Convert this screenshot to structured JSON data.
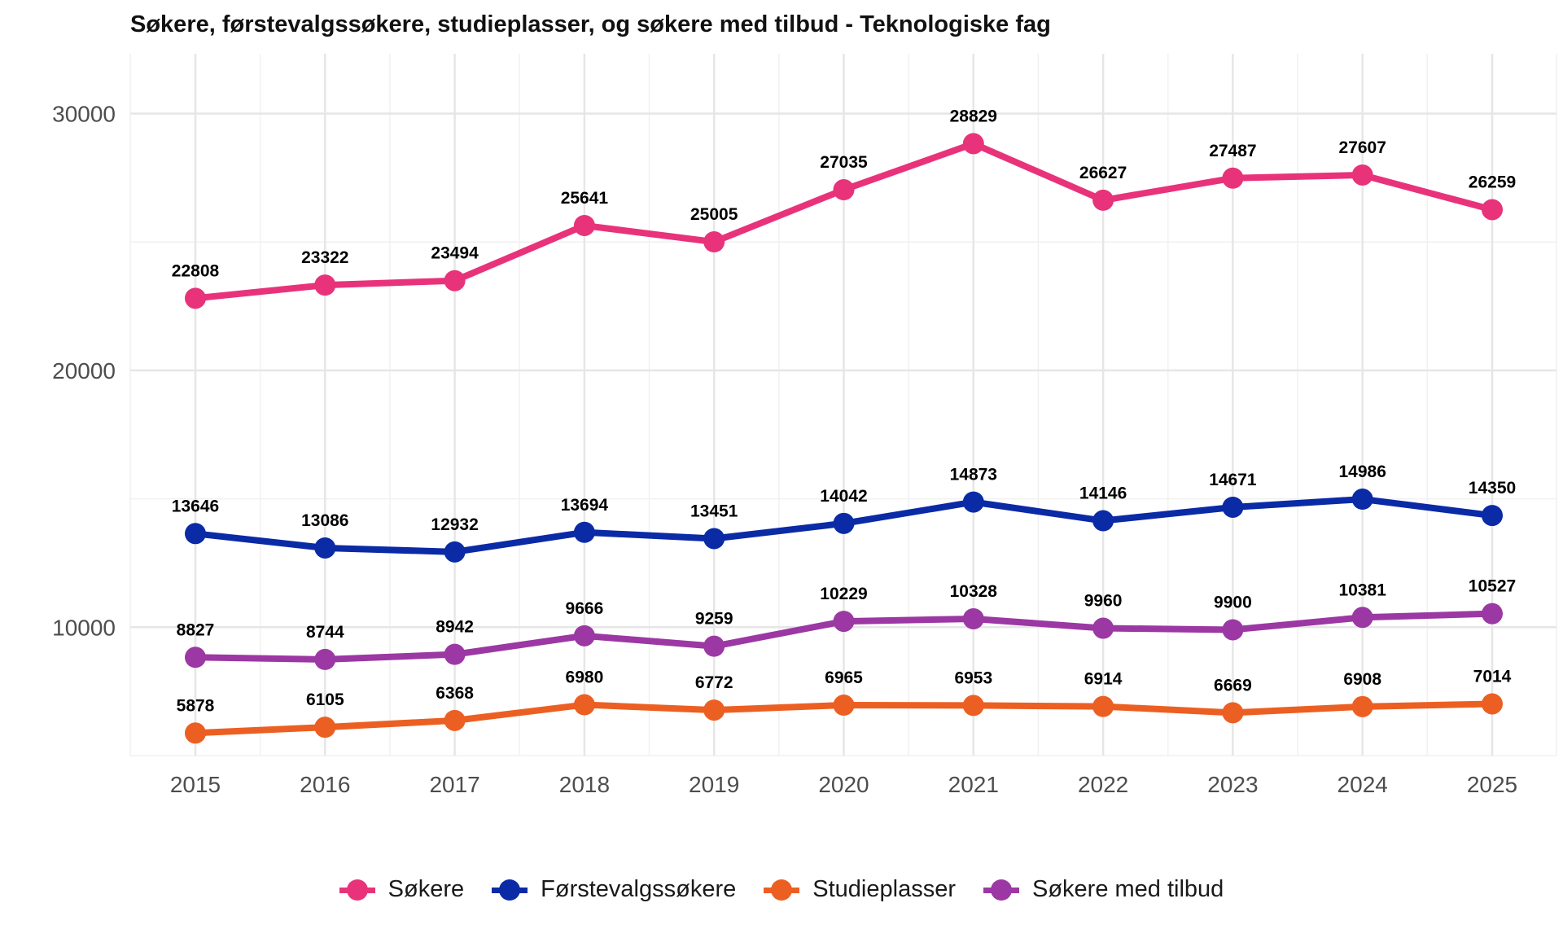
{
  "chart_data": {
    "type": "line",
    "title": "Søkere, førstevalgssøkere, studieplasser, og søkere med tilbud - Teknologiske fag",
    "xlabel": "",
    "ylabel": "",
    "categories": [
      "2015",
      "2016",
      "2017",
      "2018",
      "2019",
      "2020",
      "2021",
      "2022",
      "2023",
      "2024",
      "2025"
    ],
    "y_ticks": [
      "10000",
      "20000",
      "30000"
    ],
    "y_tick_values": [
      10000,
      20000,
      30000
    ],
    "ylim": [
      5000,
      32500
    ],
    "grid": true,
    "legend_position": "bottom",
    "series": [
      {
        "name": "Søkere",
        "color": "#E8337A",
        "values": [
          22808,
          23322,
          23494,
          25641,
          25005,
          27035,
          28829,
          26627,
          27487,
          27607,
          26259
        ],
        "labels": [
          "22808",
          "23322",
          "23494",
          "25641",
          "25005",
          "27035",
          "28829",
          "26627",
          "27487",
          "27607",
          "26259"
        ]
      },
      {
        "name": "Førstevalgssøkere",
        "color": "#0A2AA6",
        "values": [
          13646,
          13086,
          12932,
          13694,
          13451,
          14042,
          14873,
          14146,
          14671,
          14986,
          14350
        ],
        "labels": [
          "13646",
          "13086",
          "12932",
          "13694",
          "13451",
          "14042",
          "14873",
          "14146",
          "14671",
          "14986",
          "14350"
        ]
      },
      {
        "name": "Studieplasser",
        "color": "#EC5F22",
        "values": [
          5878,
          6105,
          6368,
          6980,
          6772,
          6965,
          6953,
          6914,
          6669,
          6908,
          7014
        ],
        "labels": [
          "5878",
          "6105",
          "6368",
          "6980",
          "6772",
          "6965",
          "6953",
          "6914",
          "6669",
          "6908",
          "7014"
        ]
      },
      {
        "name": "Søkere med tilbud",
        "color": "#9B38A3",
        "values": [
          8827,
          8744,
          8942,
          9666,
          9259,
          10229,
          10328,
          9960,
          9900,
          10381,
          10527
        ],
        "labels": [
          "8827",
          "8744",
          "8942",
          "9666",
          "9259",
          "10229",
          "10328",
          "9960",
          "9900",
          "10381",
          "10527"
        ]
      }
    ],
    "legend_order": [
      0,
      1,
      2,
      3
    ]
  }
}
